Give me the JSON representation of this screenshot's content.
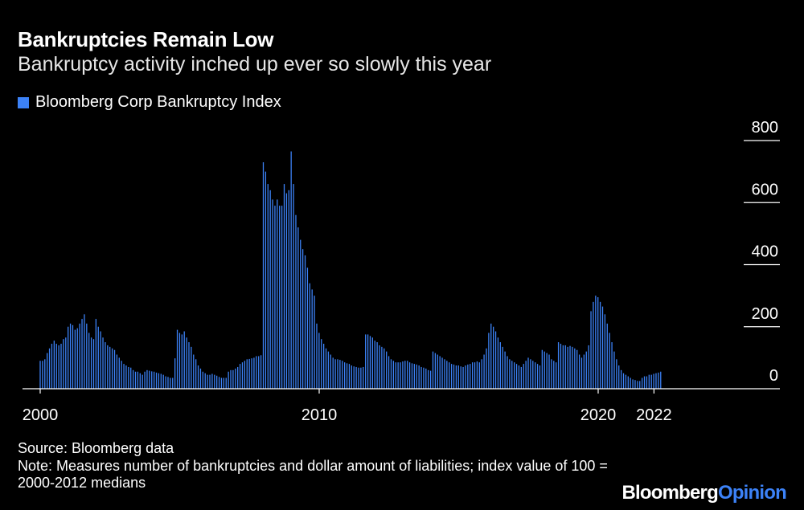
{
  "chart_data": {
    "type": "bar",
    "title": "Bankruptcies Remain Low",
    "subtitle": "Bankruptcy activity inched up ever so slowly this year",
    "legend": "Bloomberg Corp Bankruptcy Index",
    "series_color": "#3c82f7",
    "x_tick_labels": [
      "2000",
      "2010",
      "2020",
      "2022"
    ],
    "x_tick_years": [
      2000,
      2010,
      2020,
      2022.0
    ],
    "y_ticks": [
      0,
      200,
      400,
      600,
      800
    ],
    "ylim": [
      0,
      800
    ],
    "x_start": 2000.0,
    "x_step": 0.0833,
    "values": [
      90,
      90,
      95,
      115,
      130,
      145,
      155,
      145,
      140,
      145,
      160,
      165,
      200,
      210,
      205,
      190,
      195,
      210,
      225,
      240,
      210,
      180,
      165,
      160,
      225,
      200,
      185,
      165,
      150,
      140,
      135,
      130,
      125,
      110,
      100,
      90,
      80,
      75,
      70,
      68,
      60,
      55,
      55,
      50,
      45,
      55,
      60,
      58,
      56,
      55,
      52,
      50,
      48,
      45,
      40,
      38,
      35,
      35,
      98,
      190,
      180,
      175,
      185,
      165,
      150,
      135,
      110,
      95,
      75,
      65,
      55,
      50,
      45,
      45,
      48,
      45,
      42,
      38,
      35,
      35,
      35,
      55,
      60,
      60,
      65,
      70,
      80,
      85,
      90,
      95,
      96,
      98,
      100,
      105,
      105,
      108,
      730,
      700,
      660,
      640,
      610,
      590,
      610,
      590,
      590,
      660,
      630,
      640,
      765,
      660,
      560,
      520,
      480,
      450,
      430,
      390,
      340,
      320,
      300,
      210,
      180,
      160,
      145,
      130,
      120,
      110,
      100,
      95,
      95,
      93,
      90,
      85,
      82,
      80,
      75,
      72,
      70,
      68,
      68,
      70,
      175,
      175,
      170,
      165,
      155,
      150,
      140,
      135,
      130,
      120,
      105,
      95,
      90,
      85,
      85,
      85,
      88,
      90,
      90,
      85,
      82,
      80,
      78,
      75,
      70,
      68,
      65,
      60,
      58,
      120,
      115,
      110,
      105,
      100,
      95,
      90,
      85,
      80,
      78,
      75,
      75,
      72,
      70,
      75,
      78,
      80,
      85,
      85,
      88,
      85,
      95,
      110,
      130,
      180,
      210,
      200,
      185,
      165,
      150,
      135,
      120,
      105,
      95,
      90,
      85,
      80,
      75,
      70,
      80,
      90,
      100,
      95,
      90,
      85,
      80,
      75,
      125,
      120,
      115,
      110,
      95,
      90,
      85,
      150,
      145,
      140,
      140,
      135,
      138,
      135,
      130,
      125,
      110,
      100,
      110,
      120,
      140,
      250,
      280,
      300,
      295,
      280,
      265,
      240,
      210,
      180,
      150,
      120,
      95,
      75,
      60,
      50,
      45,
      40,
      35,
      30,
      28,
      25,
      25,
      35,
      40,
      40,
      45,
      45,
      48,
      50,
      52,
      55
    ]
  },
  "source": "Source: Bloomberg data",
  "note": "Note: Measures number of bankruptcies and dollar amount of liabilities; index value of 100 = 2000-2012 medians",
  "logo": {
    "bloomberg": "Bloomberg",
    "opinion": "Opinion"
  }
}
